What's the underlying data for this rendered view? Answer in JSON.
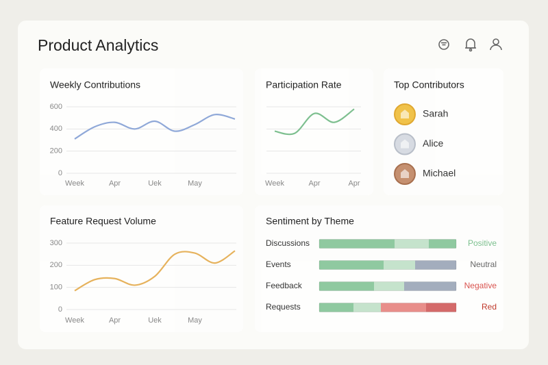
{
  "header": {
    "title": "Product Analytics"
  },
  "chart_data": [
    {
      "type": "line",
      "title": "Weekly Contributions",
      "categories": [
        "Week",
        null,
        "Apr",
        null,
        "Uek",
        null,
        "May",
        null,
        null
      ],
      "series": [
        {
          "color": "#8fa8d8",
          "values": [
            310,
            420,
            460,
            400,
            470,
            380,
            440,
            530,
            490
          ]
        }
      ],
      "ylim": [
        0,
        600
      ],
      "yticks": [
        0,
        200,
        400,
        600
      ],
      "grid": true,
      "tick_labels": true
    },
    {
      "type": "line",
      "title": "Participation Rate",
      "categories": [
        "Week",
        null,
        "Apr",
        null,
        "Apr"
      ],
      "series": [
        {
          "color": "#7dbf8f",
          "values": [
            1.9,
            1.8,
            2.7,
            2.3,
            2.9
          ]
        }
      ],
      "ylim": [
        0,
        3
      ],
      "yticks": [
        0,
        1,
        2,
        3
      ],
      "grid": true,
      "tick_labels": false
    },
    {
      "type": "line",
      "title": "Feature Request Volume",
      "categories": [
        "Week",
        null,
        "Apr",
        null,
        "Uek",
        null,
        "May",
        null,
        null
      ],
      "series": [
        {
          "color": "#e6b25c",
          "values": [
            85,
            135,
            140,
            110,
            150,
            250,
            255,
            210,
            265
          ]
        }
      ],
      "ylim": [
        0,
        300
      ],
      "yticks": [
        0,
        100,
        200,
        300
      ],
      "grid": true,
      "tick_labels": true
    }
  ],
  "contributors": {
    "title": "Top Contributors",
    "names": [
      "Sarah",
      "Alice",
      "Michael"
    ]
  },
  "sentiment": {
    "title": "Sentiment by Theme",
    "rows": [
      {
        "label": "Discussions",
        "status": "Positive",
        "status_color": "#7dc08f",
        "segments": [
          {
            "value": 55,
            "color": "#8fc9a0"
          },
          {
            "value": 25,
            "color": "#c5e3cc"
          },
          {
            "value": 20,
            "color": "#8fc9a0"
          }
        ]
      },
      {
        "label": "Events",
        "status": "Neutral",
        "status_color": "#666666",
        "segments": [
          {
            "value": 47,
            "color": "#8fc9a0"
          },
          {
            "value": 23,
            "color": "#c5e3cc"
          },
          {
            "value": 30,
            "color": "#a3adbd"
          }
        ]
      },
      {
        "label": "Feedback",
        "status": "Negative",
        "status_color": "#d9534f",
        "segments": [
          {
            "value": 40,
            "color": "#8fc9a0"
          },
          {
            "value": 22,
            "color": "#c5e3cc"
          },
          {
            "value": 38,
            "color": "#a3adbd"
          }
        ]
      },
      {
        "label": "Requests",
        "status": "Red",
        "status_color": "#c0392b",
        "segments": [
          {
            "value": 25,
            "color": "#8fc9a0"
          },
          {
            "value": 20,
            "color": "#c5e3cc"
          },
          {
            "value": 33,
            "color": "#e88e8a"
          },
          {
            "value": 22,
            "color": "#d46a6a"
          }
        ]
      }
    ]
  }
}
